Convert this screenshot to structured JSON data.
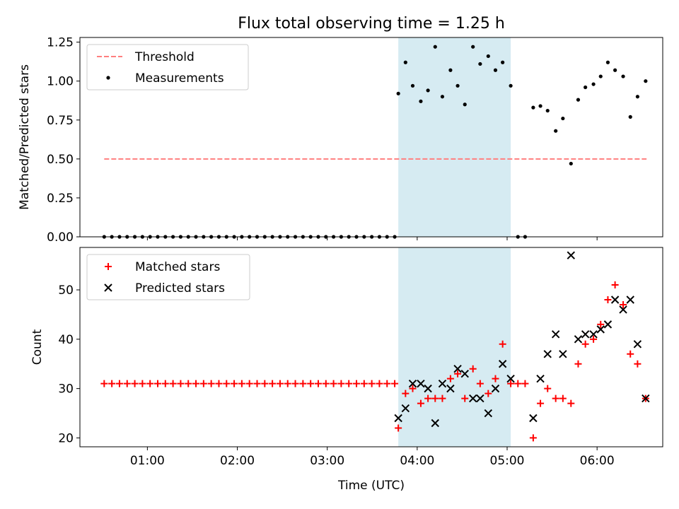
{
  "title": "Flux total observing time = 1.25 h",
  "chart_data": [
    {
      "type": "scatter",
      "ylabel": "Matched/Predicted stars",
      "xlim": [
        0.25,
        6.73
      ],
      "ylim": [
        0.0,
        1.28
      ],
      "yticks": [
        0.0,
        0.25,
        0.5,
        0.75,
        1.0,
        1.25
      ],
      "ytick_labels": [
        "0.00",
        "0.25",
        "0.50",
        "0.75",
        "1.00",
        "1.25"
      ],
      "shaded_interval": [
        3.79,
        5.04
      ],
      "threshold": {
        "name": "Threshold",
        "y": 0.5,
        "x_range": [
          0.52,
          6.55
        ],
        "color": "#ff7f7f"
      },
      "legend": {
        "placement": "top-left",
        "entries": [
          "Threshold",
          "Measurements"
        ]
      },
      "series": [
        {
          "name": "Measurements",
          "color": "#000000",
          "x": [
            0.52,
            0.605,
            0.69,
            0.775,
            0.86,
            0.945,
            1.03,
            1.115,
            1.2,
            1.285,
            1.37,
            1.455,
            1.54,
            1.625,
            1.71,
            1.795,
            1.88,
            1.965,
            2.05,
            2.135,
            2.22,
            2.305,
            2.39,
            2.475,
            2.56,
            2.645,
            2.73,
            2.815,
            2.9,
            2.985,
            3.07,
            3.155,
            3.24,
            3.325,
            3.41,
            3.495,
            3.58,
            3.665,
            3.75,
            3.79,
            3.87,
            3.95,
            4.04,
            4.12,
            4.2,
            4.28,
            4.37,
            4.45,
            4.53,
            4.62,
            4.7,
            4.79,
            4.87,
            4.95,
            5.04,
            5.12,
            5.2,
            5.29,
            5.37,
            5.45,
            5.54,
            5.62,
            5.71,
            5.79,
            5.87,
            5.96,
            6.04,
            6.12,
            6.2,
            6.29,
            6.37,
            6.45,
            6.54
          ],
          "y": [
            0,
            0,
            0,
            0,
            0,
            0,
            0,
            0,
            0,
            0,
            0,
            0,
            0,
            0,
            0,
            0,
            0,
            0,
            0,
            0,
            0,
            0,
            0,
            0,
            0,
            0,
            0,
            0,
            0,
            0,
            0,
            0,
            0,
            0,
            0,
            0,
            0,
            0,
            0,
            0.92,
            1.12,
            0.97,
            0.87,
            0.94,
            1.22,
            0.9,
            1.07,
            0.97,
            0.85,
            1.22,
            1.11,
            1.16,
            1.07,
            1.12,
            0.97,
            0,
            0,
            0.83,
            0.84,
            0.81,
            0.68,
            0.76,
            0.47,
            0.88,
            0.96,
            0.98,
            1.03,
            1.12,
            1.07,
            1.03,
            0.77,
            0.9,
            1.0
          ]
        }
      ]
    },
    {
      "type": "scatter",
      "ylabel": "Count",
      "xlabel": "Time (UTC)",
      "xlim": [
        0.25,
        6.73
      ],
      "ylim": [
        18.2,
        58.6
      ],
      "yticks": [
        20,
        30,
        40,
        50
      ],
      "ytick_labels": [
        "20",
        "30",
        "40",
        "50"
      ],
      "xticks": [
        1,
        2,
        3,
        4,
        5,
        6
      ],
      "xtick_labels": [
        "01:00",
        "02:00",
        "03:00",
        "04:00",
        "05:00",
        "06:00"
      ],
      "shaded_interval": [
        3.79,
        5.04
      ],
      "legend": {
        "placement": "top-left",
        "entries": [
          "Matched stars",
          "Predicted stars"
        ]
      },
      "series": [
        {
          "name": "Matched stars",
          "marker": "plus",
          "color": "#ff0000",
          "x": [
            0.52,
            0.605,
            0.69,
            0.775,
            0.86,
            0.945,
            1.03,
            1.115,
            1.2,
            1.285,
            1.37,
            1.455,
            1.54,
            1.625,
            1.71,
            1.795,
            1.88,
            1.965,
            2.05,
            2.135,
            2.22,
            2.305,
            2.39,
            2.475,
            2.56,
            2.645,
            2.73,
            2.815,
            2.9,
            2.985,
            3.07,
            3.155,
            3.24,
            3.325,
            3.41,
            3.495,
            3.58,
            3.665,
            3.75,
            3.79,
            3.87,
            3.95,
            4.04,
            4.12,
            4.2,
            4.28,
            4.37,
            4.45,
            4.53,
            4.62,
            4.7,
            4.79,
            4.87,
            4.95,
            5.04,
            5.12,
            5.2,
            5.29,
            5.37,
            5.45,
            5.54,
            5.62,
            5.71,
            5.79,
            5.87,
            5.96,
            6.04,
            6.12,
            6.2,
            6.29,
            6.37,
            6.45,
            6.54
          ],
          "y": [
            31,
            31,
            31,
            31,
            31,
            31,
            31,
            31,
            31,
            31,
            31,
            31,
            31,
            31,
            31,
            31,
            31,
            31,
            31,
            31,
            31,
            31,
            31,
            31,
            31,
            31,
            31,
            31,
            31,
            31,
            31,
            31,
            31,
            31,
            31,
            31,
            31,
            31,
            31,
            22,
            29,
            30,
            27,
            28,
            28,
            28,
            32,
            33,
            28,
            34,
            31,
            29,
            32,
            39,
            31,
            31,
            31,
            20,
            27,
            30,
            28,
            28,
            27,
            35,
            39,
            40,
            43,
            48,
            51,
            47,
            37,
            35,
            28
          ]
        },
        {
          "name": "Predicted stars",
          "marker": "x",
          "color": "#000000",
          "x": [
            3.79,
            3.87,
            3.95,
            4.04,
            4.12,
            4.2,
            4.28,
            4.37,
            4.45,
            4.53,
            4.62,
            4.7,
            4.79,
            4.87,
            4.95,
            5.04,
            5.29,
            5.37,
            5.45,
            5.54,
            5.62,
            5.71,
            5.79,
            5.87,
            5.96,
            6.04,
            6.12,
            6.2,
            6.29,
            6.37,
            6.45,
            6.54
          ],
          "y": [
            24,
            26,
            31,
            31,
            30,
            23,
            31,
            30,
            34,
            33,
            28,
            28,
            25,
            30,
            35,
            32,
            24,
            32,
            37,
            41,
            37,
            57,
            40,
            41,
            41,
            42,
            43,
            48,
            46,
            48,
            39,
            28
          ]
        }
      ]
    }
  ]
}
